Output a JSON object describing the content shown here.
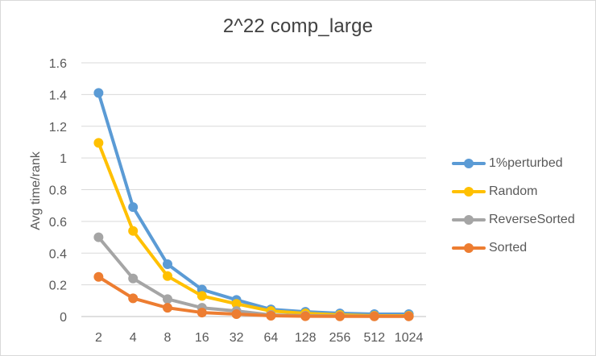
{
  "chart_data": {
    "type": "line",
    "title": "2^22 comp_large",
    "xlabel": "",
    "ylabel": "Avg time/rank",
    "categories": [
      "2",
      "4",
      "8",
      "16",
      "32",
      "64",
      "128",
      "256",
      "512",
      "1024"
    ],
    "ylim": [
      0,
      1.6
    ],
    "yticks": [
      "0",
      "0.2",
      "0.4",
      "0.6",
      "0.8",
      "1",
      "1.2",
      "1.4",
      "1.6"
    ],
    "ytick_values": [
      0,
      0.2,
      0.4,
      0.6,
      0.8,
      1.0,
      1.2,
      1.4,
      1.6
    ],
    "grid": true,
    "legend_position": "right",
    "series": [
      {
        "name": "1%perturbed",
        "color": "#5b9bd5",
        "values": [
          1.41,
          0.69,
          0.33,
          0.17,
          0.105,
          0.045,
          0.03,
          0.02,
          0.015,
          0.015
        ]
      },
      {
        "name": "Random",
        "color": "#ffc000",
        "values": [
          1.095,
          0.54,
          0.255,
          0.13,
          0.08,
          0.035,
          0.02,
          0.01,
          0.005,
          0.005
        ]
      },
      {
        "name": "ReverseSorted",
        "color": "#a5a5a5",
        "values": [
          0.5,
          0.24,
          0.11,
          0.055,
          0.035,
          0.01,
          0.005,
          0.003,
          0.002,
          0.002
        ]
      },
      {
        "name": "Sorted",
        "color": "#ed7d31",
        "values": [
          0.25,
          0.115,
          0.055,
          0.025,
          0.015,
          0.005,
          0.002,
          0.001,
          0.001,
          0.001
        ]
      }
    ]
  }
}
